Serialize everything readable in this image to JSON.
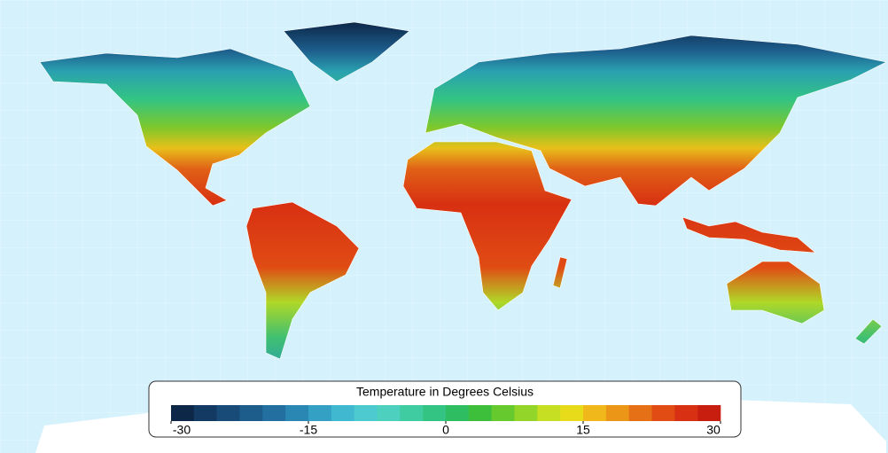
{
  "legend": {
    "title": "Temperature in Degrees Celsius",
    "clim": [
      -30,
      30
    ],
    "ticks": [
      -30,
      -15,
      0,
      15,
      30
    ],
    "colors": [
      "#0c2748",
      "#133a63",
      "#184b78",
      "#1d5d8c",
      "#2370a0",
      "#2a86b3",
      "#33a0c4",
      "#40b8cf",
      "#4ccad0",
      "#4dd0bd",
      "#3ecca0",
      "#33c484",
      "#2fbd62",
      "#3dbf3c",
      "#66c92e",
      "#94d52a",
      "#c6df22",
      "#e8dc1a",
      "#f0b81a",
      "#ec9618",
      "#e67016",
      "#e04c14",
      "#d83012",
      "#c81e10"
    ]
  }
}
